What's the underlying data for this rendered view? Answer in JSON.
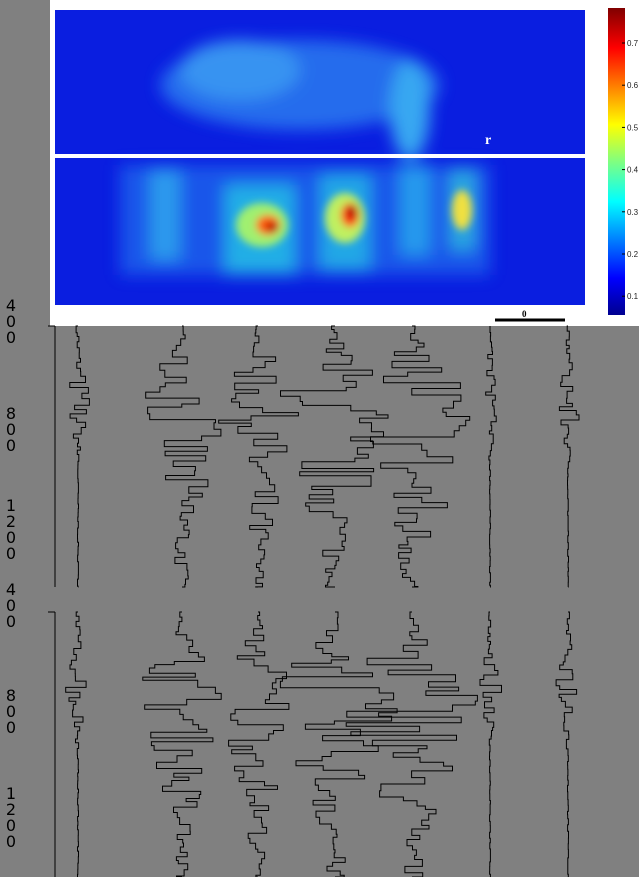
{
  "heatmap": {
    "colorbar_ticks": [
      "0.7",
      "0.6",
      "0.5",
      "0.4",
      "0.3",
      "0.2",
      "0.1"
    ],
    "marker_label": "r",
    "scale_label": "0"
  },
  "panels": [
    {
      "depth_labels": [
        "400",
        "800",
        "1200"
      ]
    },
    {
      "depth_labels": [
        "400",
        "800",
        "1200"
      ]
    }
  ]
}
